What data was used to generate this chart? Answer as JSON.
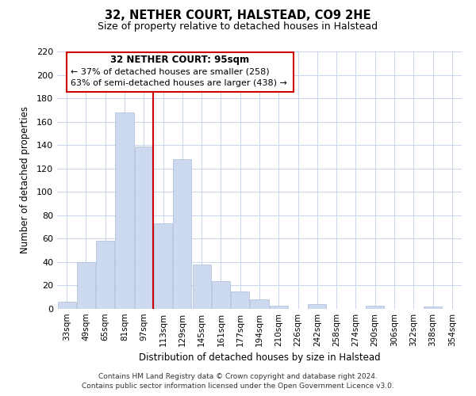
{
  "title": "32, NETHER COURT, HALSTEAD, CO9 2HE",
  "subtitle": "Size of property relative to detached houses in Halstead",
  "xlabel": "Distribution of detached houses by size in Halstead",
  "ylabel": "Number of detached properties",
  "bar_labels": [
    "33sqm",
    "49sqm",
    "65sqm",
    "81sqm",
    "97sqm",
    "113sqm",
    "129sqm",
    "145sqm",
    "161sqm",
    "177sqm",
    "194sqm",
    "210sqm",
    "226sqm",
    "242sqm",
    "258sqm",
    "274sqm",
    "290sqm",
    "306sqm",
    "322sqm",
    "338sqm",
    "354sqm"
  ],
  "bar_values": [
    6,
    40,
    58,
    168,
    139,
    73,
    128,
    38,
    24,
    15,
    8,
    3,
    0,
    4,
    0,
    0,
    3,
    0,
    0,
    2,
    0
  ],
  "bar_color": "#ccd9ee",
  "bar_edge_color": "#aabbd8",
  "highlight_bar_index": 4,
  "highlight_color": "#cc0000",
  "ylim": [
    0,
    220
  ],
  "yticks": [
    0,
    20,
    40,
    60,
    80,
    100,
    120,
    140,
    160,
    180,
    200,
    220
  ],
  "annotation_title": "32 NETHER COURT: 95sqm",
  "annotation_line1": "← 37% of detached houses are smaller (258)",
  "annotation_line2": "63% of semi-detached houses are larger (438) →",
  "annotation_box_color": "#ffffff",
  "annotation_box_edge": "#cc0000",
  "footer_line1": "Contains HM Land Registry data © Crown copyright and database right 2024.",
  "footer_line2": "Contains public sector information licensed under the Open Government Licence v3.0."
}
